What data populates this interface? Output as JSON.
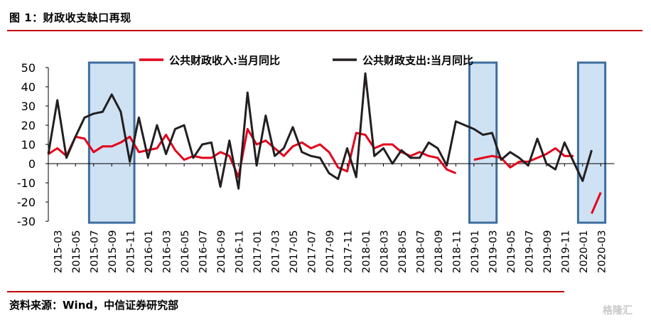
{
  "header": {
    "title": "图 1：财政收支缺口再现"
  },
  "footer": {
    "source": "资料来源：Wind，中信证券研究部"
  },
  "watermark": "格隆汇",
  "colors": {
    "revenue": "#e3001b",
    "expenditure": "#231f20",
    "accent_rule": "#c00000",
    "highlight_fill": "#cfe2f3",
    "highlight_border": "#3d6e9e"
  },
  "chart_data": {
    "type": "line",
    "title": "",
    "xlabel": "",
    "ylabel": "",
    "ylim": [
      -30,
      50
    ],
    "yticks": [
      -30,
      -20,
      -10,
      0,
      10,
      20,
      30,
      40,
      50
    ],
    "grid": false,
    "legend_position": "top",
    "x": [
      "2015-02",
      "2015-03",
      "2015-04",
      "2015-05",
      "2015-06",
      "2015-07",
      "2015-08",
      "2015-09",
      "2015-10",
      "2015-11",
      "2015-12",
      "2016-01",
      "2016-02",
      "2016-03",
      "2016-04",
      "2016-05",
      "2016-06",
      "2016-07",
      "2016-08",
      "2016-09",
      "2016-10",
      "2016-11",
      "2016-12",
      "2017-01",
      "2017-02",
      "2017-03",
      "2017-04",
      "2017-05",
      "2017-06",
      "2017-07",
      "2017-08",
      "2017-09",
      "2017-10",
      "2017-11",
      "2017-12",
      "2018-01",
      "2018-02",
      "2018-03",
      "2018-04",
      "2018-05",
      "2018-06",
      "2018-07",
      "2018-08",
      "2018-09",
      "2018-10",
      "2018-11",
      "2018-12",
      "2019-01",
      "2019-02",
      "2019-03",
      "2019-04",
      "2019-05",
      "2019-06",
      "2019-07",
      "2019-08",
      "2019-09",
      "2019-10",
      "2019-11",
      "2019-12",
      "2020-01",
      "2020-02",
      "2020-03",
      "2020-04"
    ],
    "xtick_labels": [
      "2015-03",
      "2015-05",
      "2015-07",
      "2015-09",
      "2015-11",
      "2016-01",
      "2016-03",
      "2016-05",
      "2016-07",
      "2016-09",
      "2016-11",
      "2017-01",
      "2017-03",
      "2017-05",
      "2017-07",
      "2017-09",
      "2017-11",
      "2018-01",
      "2018-03",
      "2018-05",
      "2018-07",
      "2018-09",
      "2018-11",
      "2019-01",
      "2019-03",
      "2019-05",
      "2019-07",
      "2019-09",
      "2019-11",
      "2020-01",
      "2020-03"
    ],
    "series": [
      {
        "name": "公共财政收入:当月同比",
        "color": "#e3001b",
        "values": [
          5,
          8,
          4,
          14,
          13,
          6,
          9,
          9,
          11,
          14,
          6,
          7,
          8,
          15,
          7,
          2,
          4,
          3,
          3,
          6,
          4,
          -7,
          18,
          10,
          12,
          8,
          4,
          9,
          11,
          8,
          10,
          6,
          -2,
          -4,
          16,
          15,
          8,
          10,
          10,
          6,
          4,
          6,
          4,
          3,
          -3,
          -5,
          null,
          2,
          3,
          4,
          3,
          -2,
          1,
          1,
          3,
          5,
          8,
          4,
          4,
          null,
          -26,
          -15,
          null
        ]
      },
      {
        "name": "公共财政支出:当月同比",
        "color": "#231f20",
        "values": [
          5,
          33,
          3,
          14,
          24,
          26,
          27,
          36,
          27,
          1,
          24,
          3,
          20,
          5,
          18,
          20,
          3,
          10,
          11,
          -12,
          12,
          -13,
          37,
          -1,
          25,
          4,
          8,
          19,
          6,
          4,
          3,
          -5,
          -8,
          8,
          -7,
          47,
          4,
          8,
          0,
          7,
          3,
          3,
          11,
          8,
          -1,
          22,
          20,
          18,
          15,
          16,
          2,
          6,
          3,
          -1,
          13,
          0,
          -3,
          11,
          1,
          -9,
          7,
          null,
          null
        ]
      }
    ],
    "highlight_ranges": [
      [
        "2015-07",
        "2015-11"
      ],
      [
        "2019-01",
        "2019-03"
      ],
      [
        "2020-01",
        "2020-03"
      ]
    ]
  }
}
